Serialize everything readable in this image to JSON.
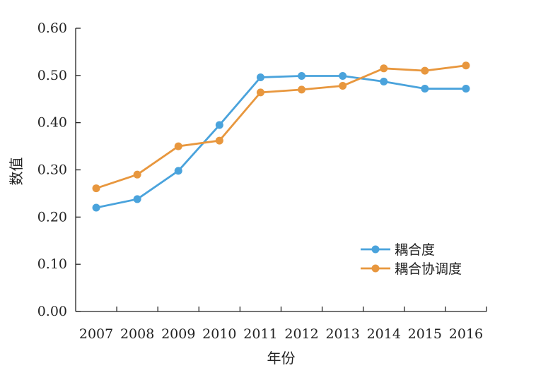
{
  "chart_data": {
    "type": "line",
    "xlabel": "年份",
    "ylabel": "数值",
    "categories": [
      "2007",
      "2008",
      "2009",
      "2010",
      "2011",
      "2012",
      "2013",
      "2014",
      "2015",
      "2016"
    ],
    "yticks": [
      "0.00",
      "0.10",
      "0.20",
      "0.30",
      "0.40",
      "0.50",
      "0.60"
    ],
    "ylim": [
      0,
      0.6
    ],
    "grid": false,
    "legend_position": "bottom-right",
    "series": [
      {
        "name": "耦合度",
        "color": "#4aa3dc",
        "values": [
          0.22,
          0.238,
          0.298,
          0.395,
          0.496,
          0.499,
          0.499,
          0.487,
          0.472,
          0.472
        ]
      },
      {
        "name": "耦合协调度",
        "color": "#e8973e",
        "values": [
          0.261,
          0.29,
          0.35,
          0.362,
          0.464,
          0.47,
          0.478,
          0.515,
          0.51,
          0.521
        ]
      }
    ]
  }
}
